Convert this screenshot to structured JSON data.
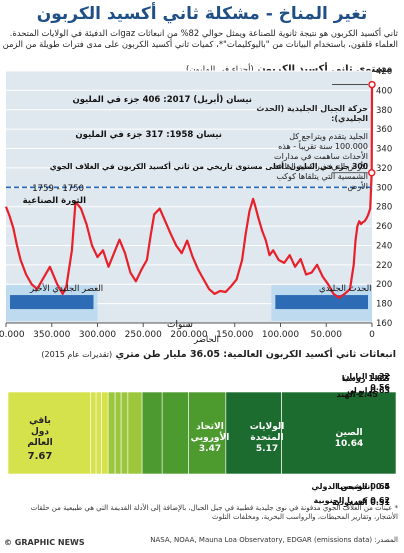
{
  "title": "تغير المناخ - مشكلة ثاني أكسيد الكربون",
  "intro": [
    "ثاني أكسيد الكربون هو نتيجة ثانوية للصناعة ويمثل حوالي 82% من انبعاثات gazات الدفيئة في الولايات المتحدة.",
    "العلماء قلقون، باستخدام البيانات من \"باليوكليمات\"*، كميات ثاني أكسيد الكربون على مدى فترات طويلة من الزمن"
  ],
  "chart_title": "مستوى ثاني أكسيد الكربون",
  "chart_unit": "(أجزاء في المليون)",
  "annotations": {
    "april2017": "نيسان (أبريل) 2017: 406 جزء في المليون",
    "apr1958": "نيسان 1958: 317 جزء في المليون",
    "max_level": "300 جزء في المليون: أعلى مستوى تاريخي من ثاني أكسيد الكربون في الغلاف الجوي",
    "ind_years": "1750 - 1759",
    "ind_rev": "الثورة الصناعية"
  },
  "cycles_note": {
    "title": "حركة الجبال الجليدية (الحدث الجليدي):",
    "body": "الجليد يتقدم ويتراجع كل 100.000 سنة تقريباً - هذه الأحداث ساهمت في مدارات الأرض التي تغير كمية الطاقة الشمسية التي يتلقاها كوكب الأرض"
  },
  "bands": {
    "recent": "الحدث الجليدي",
    "previous": "العصر الجليدي الأخير"
  },
  "xaxis_title": "سنوات",
  "xaxis_origin": "الحاضر",
  "emissions_title": "انبعاثات ثاني أكسيد الكربون العالمية: 36.05 مليار طن متري",
  "emissions_unit": "(تقديرات عام 2015)",
  "footnote": "* عينات من الغلاف الجوي مدفونة في نوى جليدية قطبية في جبل الجبال، بالإضافة إلى الأدلة القديمة التي هي طبيعية من حلقات الأشجار، وتقارير المحيطات، والرواسب البحرية، ومخلفات التلوث",
  "source": "المصدر: (NASA, NOAA, Mauna Loa Observatory, EDGAR (emissions data",
  "credit": "© GRAPHIC NEWS",
  "colors": {
    "line": "#e8202a",
    "blue": "#2d6cb5",
    "light_blue": "#b9d7ef",
    "dark_green": "#1c6b2f",
    "mid_green": "#4d9a2f",
    "light_green": "#9cc63b",
    "yellow_green": "#d6e24c"
  },
  "chart_data": [
    {
      "type": "line",
      "title": "مستوى ثاني أكسيد الكربون",
      "ylabel": "(أجزاء في المليون)",
      "xlabel": "سنوات",
      "xlim": [
        400000,
        0
      ],
      "ylim": [
        160,
        420
      ],
      "yticks": [
        160,
        180,
        200,
        220,
        240,
        260,
        280,
        300,
        320,
        340,
        360,
        380,
        400,
        420
      ],
      "xticks": [
        {
          "value": 400000,
          "label": "400.000"
        },
        {
          "value": 350000,
          "label": "350.000"
        },
        {
          "value": 300000,
          "label": "300.000"
        },
        {
          "value": 250000,
          "label": "250.000"
        },
        {
          "value": 200000,
          "label": "200.000"
        },
        {
          "value": 150000,
          "label": "150.000"
        },
        {
          "value": 100000,
          "label": "100.000"
        },
        {
          "value": 50000,
          "label": "50.000"
        },
        {
          "value": 0,
          "label": "0"
        }
      ],
      "reference_line": 300,
      "series": [
        {
          "x": [
            400000,
            396000,
            392000,
            388000,
            384000,
            378000,
            372000,
            366000,
            360000,
            352000,
            344000,
            338000,
            334000,
            328000,
            324000,
            318000,
            312000,
            306000,
            300000,
            294000,
            288000,
            282000,
            276000,
            270000,
            264000,
            258000,
            252000,
            246000,
            242000,
            238000,
            232000,
            226000,
            220000,
            214000,
            208000,
            202000,
            196000,
            190000,
            184000,
            178000,
            172000,
            166000,
            160000,
            154000,
            148000,
            142000,
            138000,
            134000,
            130000,
            128000,
            124000,
            120000,
            116000,
            112000,
            108000,
            102000,
            96000,
            90000,
            84000,
            78000,
            72000,
            66000,
            60000,
            54000,
            48000,
            42000,
            36000,
            30000,
            24000,
            20000,
            18000,
            16000,
            14000,
            12000,
            10000,
            8000,
            6000,
            4000,
            2000,
            300,
            0
          ],
          "values": [
            280,
            270,
            258,
            240,
            225,
            210,
            200,
            195,
            205,
            218,
            200,
            190,
            198,
            235,
            285,
            278,
            262,
            240,
            228,
            235,
            218,
            232,
            246,
            232,
            212,
            203,
            215,
            225,
            250,
            272,
            278,
            265,
            252,
            240,
            232,
            245,
            228,
            215,
            205,
            195,
            190,
            193,
            192,
            198,
            205,
            225,
            252,
            275,
            288,
            282,
            268,
            255,
            245,
            230,
            235,
            225,
            222,
            230,
            218,
            226,
            210,
            212,
            220,
            208,
            200,
            190,
            186,
            190,
            195,
            220,
            245,
            260,
            265,
            262,
            264,
            265,
            268,
            272,
            278,
            315,
            406
          ]
        }
      ]
    },
    {
      "type": "bar",
      "title": "انبعاثات ثاني أكسيد الكربون العالمية: 36.05 مليار طن متري",
      "subtitle": "(تقديرات عام 2015)",
      "total": 36.05,
      "categories": [
        "الصين",
        "الولايات المتحدة",
        "الاتحاد الأوروبي",
        "الهند",
        "روسيا",
        "اليابان",
        "إيران",
        "كندا",
        "الشحن الدولي",
        "كوريا الجنوبية",
        "السعودية",
        "إندونيسيا",
        "باقي دول العالم"
      ],
      "values": [
        10.64,
        5.17,
        3.47,
        2.45,
        1.87,
        1.32,
        0.63,
        0.56,
        0.64,
        0.62,
        0.51,
        0.5,
        7.67
      ]
    }
  ]
}
